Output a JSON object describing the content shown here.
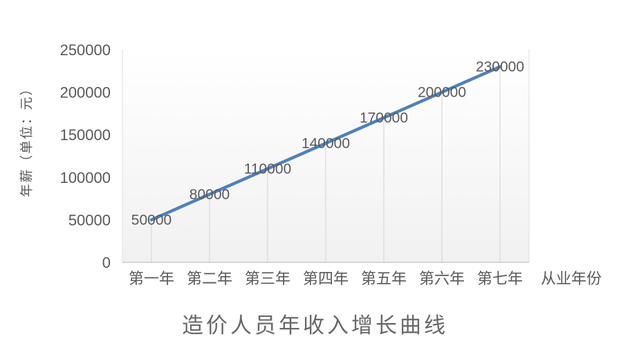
{
  "chart_data": {
    "type": "line",
    "title": "造价人员年收入增长曲线",
    "x_axis_title": "从业年份",
    "y_axis_title": "年薪（单位：元）",
    "categories": [
      "第一年",
      "第二年",
      "第三年",
      "第四年",
      "第五年",
      "第六年",
      "第七年"
    ],
    "values": [
      50000,
      80000,
      110000,
      140000,
      170000,
      200000,
      230000
    ],
    "data_labels": [
      "50000",
      "80000",
      "110000",
      "140000",
      "170000",
      "200000",
      "230000"
    ],
    "y_ticks": [
      0,
      50000,
      100000,
      150000,
      200000,
      250000
    ],
    "ylim": [
      0,
      250000
    ],
    "grid": "vertical-drop-lines",
    "legend": "none",
    "colors": {
      "line": "#4f81bd",
      "text": "#595959",
      "title_text": "#686868",
      "drop_line": "#d9d9d9",
      "plot_edge": "#dedede",
      "axis_line": "#c9c9c9",
      "plot_fill_top": "#ffffff",
      "plot_fill_bottom": "#f1f1f1"
    }
  }
}
